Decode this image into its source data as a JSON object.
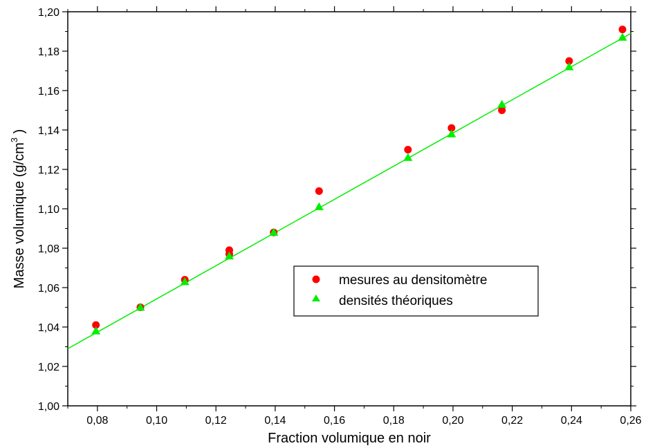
{
  "chart_data": {
    "type": "scatter",
    "xlabel": "Fraction volumique en noir",
    "ylabel_main": "Masse volumique (g/cm",
    "ylabel_sup": "3",
    "ylabel_end": " )",
    "xlim": [
      0.07,
      0.26
    ],
    "ylim": [
      1.0,
      1.2
    ],
    "x_ticks": [
      "0,08",
      "0,10",
      "0,12",
      "0,14",
      "0,16",
      "0,18",
      "0,20",
      "0,22",
      "0,24",
      "0,26"
    ],
    "y_ticks": [
      "1,00",
      "1,02",
      "1,04",
      "1,06",
      "1,08",
      "1,10",
      "1,12",
      "1,14",
      "1,16",
      "1,18",
      "1,20"
    ],
    "grid": false,
    "legend_position": "center-right",
    "series": [
      {
        "name": "mesures au densitomètre",
        "marker": "circle",
        "color": "#ff0000",
        "points": [
          [
            0.0795,
            1.041
          ],
          [
            0.0945,
            1.05
          ],
          [
            0.1095,
            1.064
          ],
          [
            0.1245,
            1.079
          ],
          [
            0.1245,
            1.077
          ],
          [
            0.1395,
            1.088
          ],
          [
            0.1548,
            1.109
          ],
          [
            0.1848,
            1.13
          ],
          [
            0.1995,
            1.141
          ],
          [
            0.2165,
            1.15
          ],
          [
            0.2392,
            1.175
          ],
          [
            0.2572,
            1.191
          ]
        ]
      },
      {
        "name": "densités théoriques",
        "marker": "triangle",
        "color": "#00ee00",
        "points": [
          [
            0.0795,
            1.038
          ],
          [
            0.0945,
            1.05
          ],
          [
            0.1095,
            1.063
          ],
          [
            0.1245,
            1.076
          ],
          [
            0.1395,
            1.088
          ],
          [
            0.1548,
            1.101
          ],
          [
            0.1848,
            1.126
          ],
          [
            0.1995,
            1.138
          ],
          [
            0.2165,
            1.153
          ],
          [
            0.2392,
            1.172
          ],
          [
            0.2572,
            1.187
          ]
        ]
      }
    ],
    "fit_line": {
      "color": "#00ee00",
      "points": [
        [
          0.07,
          1.029
        ],
        [
          0.26,
          1.189
        ]
      ]
    }
  }
}
